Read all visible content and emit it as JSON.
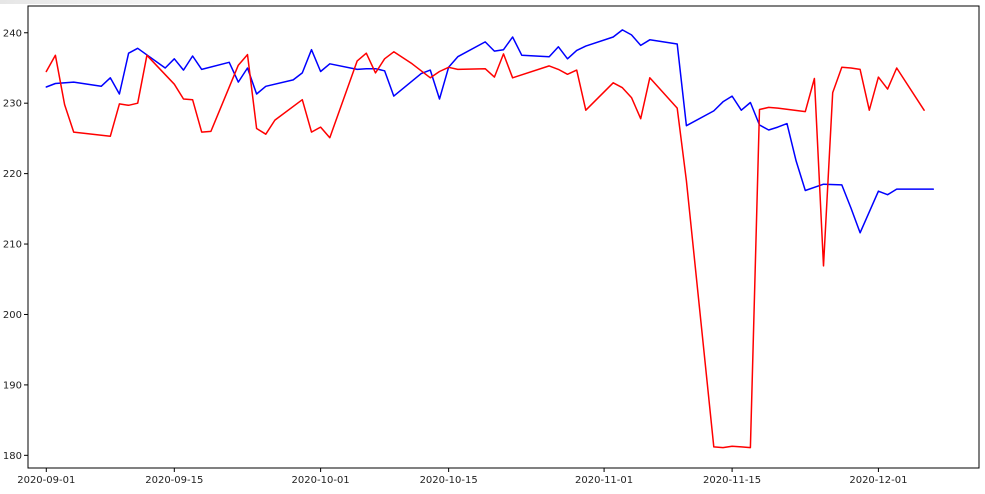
{
  "chart_data": {
    "type": "line",
    "title": "",
    "xlabel": "",
    "ylabel": "",
    "x_is_date": true,
    "xlim": [
      "2020-08-30",
      "2020-12-12"
    ],
    "ylim": [
      178.2,
      243.8
    ],
    "grid": false,
    "legend": "none",
    "x_ticks": [
      {
        "date": "2020-09-01",
        "label": "2020-09-01"
      },
      {
        "date": "2020-09-15",
        "label": "2020-09-15"
      },
      {
        "date": "2020-10-01",
        "label": "2020-10-01"
      },
      {
        "date": "2020-10-15",
        "label": "2020-10-15"
      },
      {
        "date": "2020-11-01",
        "label": "2020-11-01"
      },
      {
        "date": "2020-11-15",
        "label": "2020-11-15"
      },
      {
        "date": "2020-12-01",
        "label": "2020-12-01"
      }
    ],
    "y_ticks": [
      {
        "value": 180,
        "label": "180"
      },
      {
        "value": 190,
        "label": "190"
      },
      {
        "value": 200,
        "label": "200"
      },
      {
        "value": 210,
        "label": "210"
      },
      {
        "value": 220,
        "label": "220"
      },
      {
        "value": 230,
        "label": "230"
      },
      {
        "value": 240,
        "label": "240"
      }
    ],
    "series": [
      {
        "color": "#0000ff",
        "x": [
          "2020-09-01",
          "2020-09-02",
          "2020-09-04",
          "2020-09-07",
          "2020-09-08",
          "2020-09-09",
          "2020-09-10",
          "2020-09-11",
          "2020-09-14",
          "2020-09-15",
          "2020-09-16",
          "2020-09-17",
          "2020-09-18",
          "2020-09-21",
          "2020-09-22",
          "2020-09-23",
          "2020-09-24",
          "2020-09-25",
          "2020-09-28",
          "2020-09-29",
          "2020-09-30",
          "2020-10-01",
          "2020-10-02",
          "2020-10-05",
          "2020-10-06",
          "2020-10-07",
          "2020-10-08",
          "2020-10-09",
          "2020-10-12",
          "2020-10-13",
          "2020-10-14",
          "2020-10-15",
          "2020-10-16",
          "2020-10-19",
          "2020-10-20",
          "2020-10-21",
          "2020-10-22",
          "2020-10-23",
          "2020-10-26",
          "2020-10-27",
          "2020-10-28",
          "2020-10-29",
          "2020-10-30",
          "2020-11-02",
          "2020-11-03",
          "2020-11-04",
          "2020-11-05",
          "2020-11-06",
          "2020-11-09",
          "2020-11-10",
          "2020-11-13",
          "2020-11-14",
          "2020-11-15",
          "2020-11-16",
          "2020-11-17",
          "2020-11-18",
          "2020-11-19",
          "2020-11-20",
          "2020-11-21",
          "2020-11-22",
          "2020-11-23",
          "2020-11-25",
          "2020-11-27",
          "2020-11-28",
          "2020-11-29",
          "2020-12-01",
          "2020-12-02",
          "2020-12-03",
          "2020-12-04",
          "2020-12-07"
        ],
        "y": [
          232.3,
          232.8,
          233.0,
          232.4,
          233.6,
          231.3,
          237.1,
          237.8,
          235.0,
          236.3,
          234.7,
          236.7,
          234.8,
          235.8,
          233.0,
          235.0,
          231.3,
          232.4,
          233.3,
          234.3,
          237.6,
          234.5,
          235.6,
          234.8,
          234.9,
          234.9,
          234.6,
          231.0,
          234.2,
          234.7,
          230.6,
          235.1,
          236.6,
          238.7,
          237.4,
          237.6,
          239.4,
          236.8,
          236.6,
          238.0,
          236.3,
          237.5,
          238.1,
          239.4,
          240.4,
          239.7,
          238.2,
          239.0,
          238.4,
          226.8,
          228.9,
          230.2,
          231.0,
          229.0,
          230.1,
          226.9,
          226.2,
          226.6,
          227.1,
          221.8,
          217.6,
          218.5,
          218.4,
          215.1,
          211.6,
          217.5,
          217.0,
          217.8,
          217.8,
          217.8
        ]
      },
      {
        "color": "#ff0000",
        "x": [
          "2020-09-01",
          "2020-09-02",
          "2020-09-03",
          "2020-09-04",
          "2020-09-08",
          "2020-09-09",
          "2020-09-10",
          "2020-09-11",
          "2020-09-12",
          "2020-09-15",
          "2020-09-16",
          "2020-09-17",
          "2020-09-18",
          "2020-09-19",
          "2020-09-22",
          "2020-09-23",
          "2020-09-24",
          "2020-09-25",
          "2020-09-26",
          "2020-09-29",
          "2020-09-30",
          "2020-10-01",
          "2020-10-02",
          "2020-10-05",
          "2020-10-06",
          "2020-10-07",
          "2020-10-08",
          "2020-10-09",
          "2020-10-11",
          "2020-10-13",
          "2020-10-14",
          "2020-10-15",
          "2020-10-16",
          "2020-10-19",
          "2020-10-20",
          "2020-10-21",
          "2020-10-22",
          "2020-10-26",
          "2020-10-27",
          "2020-10-28",
          "2020-10-29",
          "2020-10-30",
          "2020-11-02",
          "2020-11-03",
          "2020-11-04",
          "2020-11-05",
          "2020-11-06",
          "2020-11-09",
          "2020-11-10",
          "2020-11-13",
          "2020-11-14",
          "2020-11-15",
          "2020-11-16",
          "2020-11-17",
          "2020-11-18",
          "2020-11-19",
          "2020-11-20",
          "2020-11-23",
          "2020-11-24",
          "2020-11-25",
          "2020-11-26",
          "2020-11-27",
          "2020-11-28",
          "2020-11-29",
          "2020-11-30",
          "2020-12-01",
          "2020-12-02",
          "2020-12-03",
          "2020-12-06"
        ],
        "y": [
          234.5,
          236.8,
          229.8,
          225.9,
          225.3,
          229.9,
          229.7,
          230.0,
          236.8,
          232.7,
          230.6,
          230.5,
          225.9,
          226.0,
          235.4,
          236.9,
          226.4,
          225.6,
          227.6,
          230.5,
          225.9,
          226.6,
          225.1,
          236.0,
          237.1,
          234.3,
          236.3,
          237.3,
          235.6,
          233.6,
          234.5,
          235.1,
          234.8,
          234.9,
          233.7,
          237.0,
          233.6,
          235.3,
          234.8,
          234.1,
          234.7,
          229.0,
          232.9,
          232.2,
          230.8,
          227.8,
          233.6,
          229.3,
          219.0,
          181.2,
          181.1,
          181.3,
          181.2,
          181.1,
          229.1,
          229.4,
          229.3,
          228.8,
          233.5,
          206.9,
          231.5,
          235.1,
          235.0,
          234.8,
          229.0,
          233.7,
          232.0,
          235.0,
          229.0
        ]
      }
    ]
  }
}
